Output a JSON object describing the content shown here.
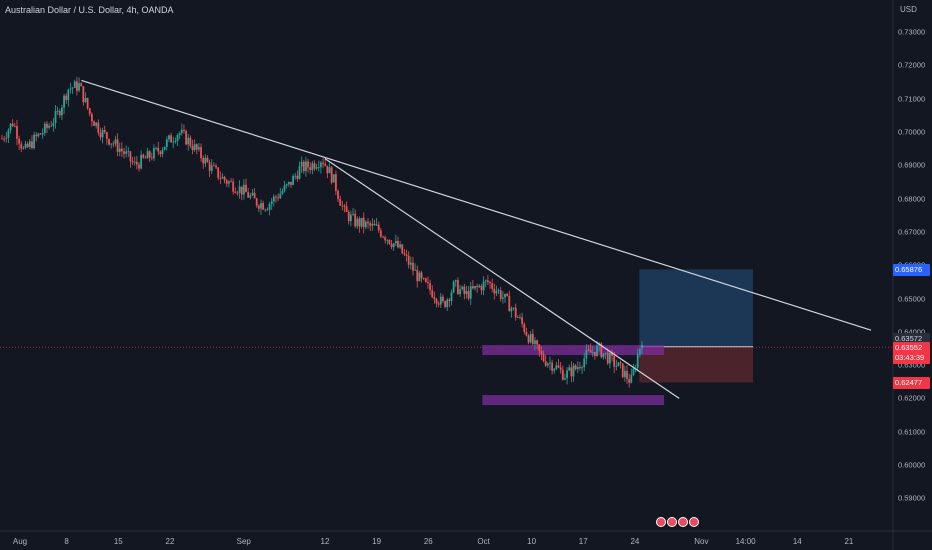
{
  "header": {
    "title": "Australian Dollar / U.S. Dollar, 4h, OANDA",
    "currency": "USD"
  },
  "colors": {
    "background": "#131722",
    "up": "#26a69a",
    "down": "#ef5350",
    "trendline": "#d1d4dc",
    "zone": "#7b2d9c",
    "profit": "#2f6fb5",
    "loss": "#b53a3a"
  },
  "chart_data": {
    "type": "candlestick",
    "symbol": "AUDUSD",
    "interval": "4h",
    "ylim": [
      0.585,
      0.735
    ],
    "y_ticks": [
      "0.73000",
      "0.72000",
      "0.71000",
      "0.70000",
      "0.69000",
      "0.68000",
      "0.67000",
      "0.66000",
      "0.65000",
      "0.64000",
      "0.63000",
      "0.62000",
      "0.61000",
      "0.60000",
      "0.59000"
    ],
    "x_ticks": [
      "Aug",
      "8",
      "15",
      "22",
      "Sep",
      "12",
      "19",
      "26",
      "Oct",
      "10",
      "17",
      "24",
      "Nov",
      "14:00",
      "14",
      "21"
    ],
    "price_path_closes": [
      0.698,
      0.703,
      0.694,
      0.698,
      0.701,
      0.705,
      0.713,
      0.714,
      0.705,
      0.7,
      0.697,
      0.694,
      0.69,
      0.692,
      0.694,
      0.697,
      0.7,
      0.697,
      0.693,
      0.689,
      0.686,
      0.684,
      0.682,
      0.679,
      0.678,
      0.681,
      0.684,
      0.689,
      0.69,
      0.692,
      0.686,
      0.676,
      0.673,
      0.672,
      0.671,
      0.668,
      0.665,
      0.66,
      0.655,
      0.652,
      0.648,
      0.654,
      0.651,
      0.653,
      0.655,
      0.652,
      0.648,
      0.643,
      0.637,
      0.632,
      0.63,
      0.627,
      0.629,
      0.633,
      0.635,
      0.632,
      0.629,
      0.625,
      0.638
    ],
    "trendlines": [
      {
        "from": [
          "Aug 10",
          0.7155
        ],
        "to": [
          "Nov 25",
          0.6405
        ]
      },
      {
        "from": [
          "Sep 12",
          0.692
        ],
        "to": [
          "Oct 30",
          0.62
        ]
      }
    ],
    "zones": [
      {
        "from": "Oct 4",
        "to": "Oct 27",
        "low": 0.633,
        "high": 0.636
      },
      {
        "from": "Oct 4",
        "to": "Oct 27",
        "low": 0.618,
        "high": 0.621
      }
    ],
    "position": {
      "entry": 0.63552,
      "target": 0.65876,
      "stop": 0.62477
    },
    "labels": {
      "target": "0.65876",
      "last_high": "0.63572",
      "current": "0.63552",
      "countdown": "03:43:39",
      "stop": "0.62477"
    }
  }
}
